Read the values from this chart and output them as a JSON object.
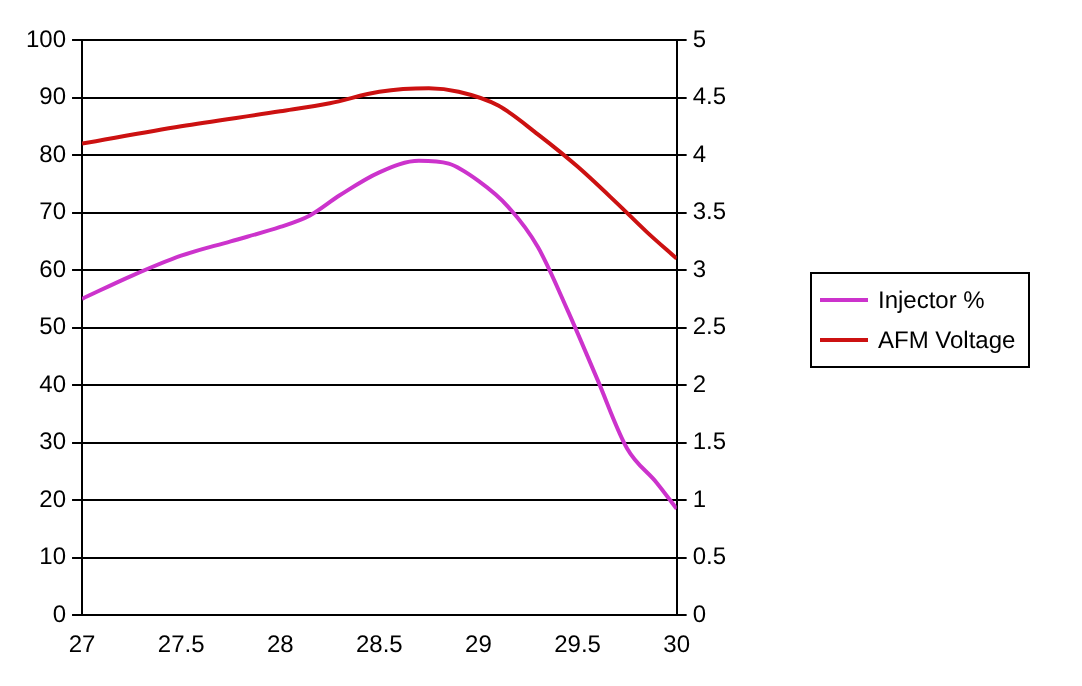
{
  "chart_data": {
    "type": "line",
    "x": [
      27,
      27.25,
      27.5,
      27.75,
      28,
      28.15,
      28.3,
      28.5,
      28.7,
      28.85,
      29,
      29.15,
      29.3,
      29.45,
      29.6,
      29.75,
      29.9,
      30
    ],
    "series": [
      {
        "name": "Injector %",
        "color": "#cc33cc",
        "values": [
          55,
          59,
          62.5,
          65,
          67.5,
          69.5,
          73,
          77,
          79,
          78.5,
          75.5,
          71,
          64,
          53,
          41,
          29,
          23,
          18.5
        ]
      },
      {
        "name": "AFM Voltage",
        "color": "#cc1111",
        "axis": "y2",
        "x": [
          27,
          27.5,
          28,
          28.25,
          28.5,
          28.75,
          28.9,
          29.1,
          29.3,
          29.5,
          29.7,
          29.85,
          30
        ],
        "values": [
          4.1,
          4.25,
          4.38,
          4.45,
          4.55,
          4.58,
          4.55,
          4.43,
          4.18,
          3.9,
          3.58,
          3.33,
          3.1
        ]
      }
    ],
    "xlim": [
      27,
      30
    ],
    "xticks": [
      27,
      27.5,
      28,
      28.5,
      29,
      29.5,
      30
    ],
    "ylim": [
      0,
      100
    ],
    "yticks": [
      0,
      10,
      20,
      30,
      40,
      50,
      60,
      70,
      80,
      90,
      100
    ],
    "y2lim": [
      0,
      5
    ],
    "y2ticks": [
      0,
      0.5,
      1,
      1.5,
      2,
      2.5,
      3,
      3.5,
      4,
      4.5,
      5
    ],
    "grid": "y",
    "legend": "right",
    "marker": "none",
    "line_style": "solid"
  }
}
